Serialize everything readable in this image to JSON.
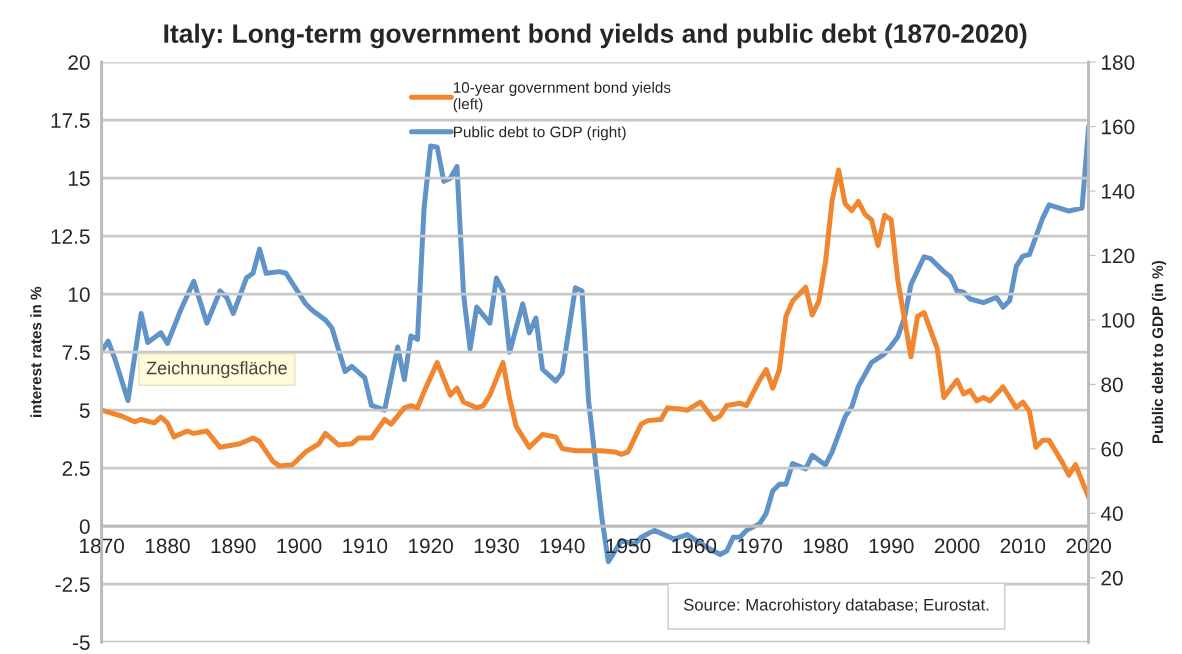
{
  "chart_data": {
    "type": "line",
    "title": "Italy: Long-term government bond yields and public debt (1870-2020)",
    "ylabel": "interest rates in %",
    "y2label": "Public debt to GDP (in %)",
    "xlim": [
      1870,
      2020
    ],
    "xticks": [
      1870,
      1880,
      1890,
      1900,
      1910,
      1920,
      1930,
      1940,
      1950,
      1960,
      1970,
      1980,
      1990,
      2000,
      2010,
      2020
    ],
    "ylim": [
      -5,
      20
    ],
    "yticks": [
      -5,
      -2.5,
      0,
      2.5,
      5,
      7.5,
      10,
      12.5,
      15,
      17.5,
      20
    ],
    "y2lim": [
      0,
      180
    ],
    "y2ticks": [
      20,
      40,
      60,
      80,
      100,
      120,
      140,
      160,
      180
    ],
    "grid": "y",
    "legend": "top",
    "line_style": "solid",
    "series": [
      {
        "name": "10-year government bond yields\n(left)",
        "color": "#f0862f",
        "x": [
          1870,
          1873,
          1875,
          1876,
          1878,
          1879,
          1880,
          1881,
          1883,
          1884,
          1886,
          1888,
          1891,
          1893,
          1894,
          1896,
          1897,
          1899,
          1901,
          1903,
          1904,
          1906,
          1908,
          1909,
          1911,
          1913,
          1914,
          1916,
          1917,
          1918,
          1919,
          1921,
          1923,
          1924,
          1925,
          1927,
          1928,
          1929,
          1931,
          1932,
          1933,
          1935,
          1937,
          1939,
          1940,
          1942,
          1946,
          1948,
          1949,
          1950,
          1952,
          1953,
          1955,
          1956,
          1958,
          1959,
          1961,
          1963,
          1964,
          1965,
          1967,
          1968,
          1970,
          1971,
          1972,
          1973,
          1974,
          1975,
          1977,
          1978,
          1979,
          1980,
          1981,
          1982,
          1983,
          1984,
          1985,
          1986,
          1987,
          1988,
          1989,
          1990,
          1991,
          1993,
          1994,
          1995,
          1997,
          1998,
          2000,
          2001,
          2002,
          2003,
          2004,
          2005,
          2007,
          2009,
          2010,
          2011,
          2012,
          2013,
          2014,
          2016,
          2017,
          2018,
          2020
        ],
        "values": [
          5.0,
          4.75,
          4.5,
          4.6,
          4.45,
          4.7,
          4.45,
          3.85,
          4.1,
          4.0,
          4.1,
          3.4,
          3.55,
          3.8,
          3.65,
          2.8,
          2.6,
          2.65,
          3.2,
          3.55,
          4.0,
          3.5,
          3.55,
          3.8,
          3.8,
          4.6,
          4.4,
          5.1,
          5.2,
          5.1,
          5.8,
          7.05,
          5.65,
          5.95,
          5.35,
          5.1,
          5.2,
          5.65,
          7.05,
          5.5,
          4.3,
          3.4,
          3.95,
          3.85,
          3.35,
          3.25,
          3.25,
          3.2,
          3.1,
          3.2,
          4.4,
          4.55,
          4.6,
          5.1,
          5.05,
          5.0,
          5.35,
          4.6,
          4.75,
          5.2,
          5.3,
          5.2,
          6.3,
          6.75,
          5.95,
          6.75,
          9.05,
          9.7,
          10.3,
          9.1,
          9.7,
          11.35,
          14.0,
          15.35,
          13.9,
          13.6,
          14.0,
          13.45,
          13.2,
          12.1,
          13.4,
          13.2,
          10.6,
          7.3,
          9.05,
          9.2,
          7.65,
          5.55,
          6.3,
          5.7,
          5.85,
          5.4,
          5.55,
          5.4,
          6.0,
          5.1,
          5.35,
          4.95,
          3.4,
          3.7,
          3.7,
          2.75,
          2.2,
          2.65,
          1.25
        ]
      },
      {
        "name": "Public debt to GDP (right)",
        "color": "#6094c8",
        "axis": "y2",
        "x": [
          1870,
          1871,
          1872,
          1874,
          1876,
          1877,
          1879,
          1880,
          1882,
          1884,
          1886,
          1888,
          1889,
          1890,
          1892,
          1893,
          1894,
          1895,
          1897,
          1898,
          1901,
          1902,
          1904,
          1905,
          1907,
          1908,
          1910,
          1911,
          1913,
          1915,
          1916,
          1917,
          1918,
          1919,
          1920,
          1921,
          1922,
          1923,
          1924,
          1925,
          1926,
          1927,
          1929,
          1930,
          1931,
          1932,
          1934,
          1935,
          1936,
          1937,
          1939,
          1940,
          1942,
          1943,
          1944,
          1946,
          1947,
          1949,
          1951,
          1952,
          1954,
          1957,
          1959,
          1962,
          1964,
          1965,
          1966,
          1967,
          1968,
          1970,
          1971,
          1972,
          1973,
          1974,
          1975,
          1977,
          1978,
          1980,
          1981,
          1983,
          1984,
          1985,
          1987,
          1989,
          1990,
          1991,
          1992,
          1993,
          1995,
          1996,
          1998,
          1999,
          2000,
          2001,
          2002,
          2004,
          2006,
          2007,
          2008,
          2009,
          2010,
          2011,
          2013,
          2014,
          2017,
          2019,
          2020
        ],
        "values": [
          90.5,
          93.4,
          88,
          75,
          102,
          93,
          96,
          92.7,
          103,
          112,
          99,
          109,
          107,
          102,
          113,
          114.5,
          122,
          114.5,
          115,
          114.5,
          105,
          103,
          100,
          97.5,
          84,
          85.6,
          82,
          73.5,
          72,
          91.6,
          81.5,
          95,
          94,
          134.7,
          154,
          153.6,
          143,
          144,
          147.6,
          108,
          91,
          104,
          99,
          113,
          109,
          90,
          105,
          96,
          100.6,
          84.7,
          81,
          83.6,
          110,
          109,
          75,
          39,
          25,
          31.5,
          30.4,
          32.6,
          34.7,
          32,
          33.4,
          29.4,
          27.2,
          28.3,
          32.6,
          32.6,
          34.7,
          36.8,
          40,
          47,
          49,
          49,
          55.4,
          53.8,
          58,
          55,
          59,
          70,
          73,
          79.4,
          86.8,
          89.5,
          92,
          94.8,
          100.6,
          111,
          119.6,
          119,
          115,
          113.4,
          109,
          108.6,
          106.5,
          105.4,
          107,
          104,
          106,
          116.6,
          119.8,
          120.3,
          131.5,
          135.7,
          133.8,
          134.7,
          160
        ]
      }
    ],
    "annotations": [
      "Source: Macrohistory database; Eurostat.",
      "Zeichnungsfläche"
    ]
  }
}
